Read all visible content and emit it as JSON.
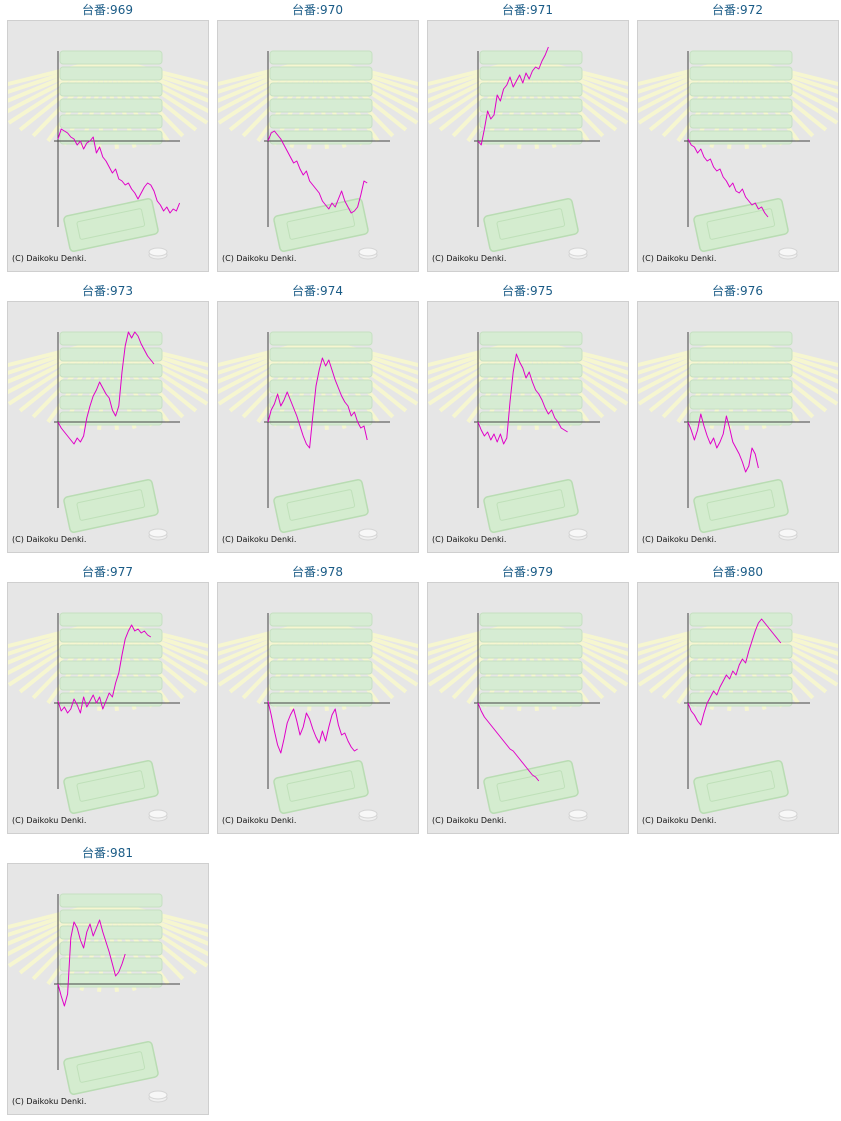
{
  "label_prefix": "台番:",
  "copyright": "(C) Daikoku Denki.",
  "colors": {
    "line": "#e000c8",
    "axis": "#444444",
    "frame_bg": "#e6e6e6",
    "title": "#1a5b86"
  },
  "chart_data": [
    {
      "type": "line",
      "title": "台番:969",
      "values": [
        0.1,
        0.6,
        0.5,
        0.4,
        0.2,
        0.1,
        -0.2,
        0.0,
        -0.4,
        -0.1,
        0.0,
        0.2,
        -0.6,
        -0.3,
        -0.8,
        -1.0,
        -1.3,
        -1.6,
        -1.4,
        -1.9,
        -2.0,
        -2.2,
        -2.1,
        -2.4,
        -2.6,
        -2.9,
        -2.6,
        -2.3,
        -2.1,
        -2.2,
        -2.5,
        -3.0,
        -3.2,
        -3.5,
        -3.3,
        -3.6,
        -3.4,
        -3.5,
        -3.1
      ]
    },
    {
      "type": "line",
      "title": "台番:970",
      "values": [
        0.0,
        0.4,
        0.5,
        0.3,
        0.1,
        -0.2,
        -0.5,
        -0.8,
        -1.1,
        -1.0,
        -1.4,
        -1.7,
        -1.5,
        -2.0,
        -2.2,
        -2.4,
        -2.6,
        -3.0,
        -3.2,
        -3.4,
        -3.1,
        -3.3,
        -2.9,
        -2.5,
        -3.0,
        -3.3,
        -3.6,
        -3.5,
        -3.3,
        -2.7,
        -2.0,
        -2.1
      ]
    },
    {
      "type": "line",
      "title": "台番:971",
      "values": [
        0.0,
        -0.2,
        0.6,
        1.5,
        1.1,
        1.3,
        2.3,
        2.0,
        2.6,
        2.8,
        3.2,
        2.7,
        3.0,
        3.3,
        2.9,
        3.4,
        3.1,
        3.5,
        3.7,
        3.6,
        4.0,
        4.3,
        4.7
      ]
    },
    {
      "type": "line",
      "title": "台番:972",
      "values": [
        0.1,
        -0.2,
        -0.3,
        -0.6,
        -0.4,
        -0.8,
        -1.0,
        -0.9,
        -1.3,
        -1.5,
        -1.4,
        -1.8,
        -2.0,
        -2.3,
        -2.1,
        -2.5,
        -2.6,
        -2.4,
        -2.8,
        -3.0,
        -3.2,
        -3.1,
        -3.4,
        -3.3,
        -3.6,
        -3.8
      ]
    },
    {
      "type": "line",
      "title": "台番:973",
      "values": [
        0.0,
        -0.3,
        -0.5,
        -0.7,
        -0.9,
        -1.1,
        -0.8,
        -1.0,
        -0.7,
        0.2,
        0.8,
        1.3,
        1.6,
        2.0,
        1.7,
        1.4,
        1.2,
        0.6,
        0.3,
        0.8,
        2.5,
        3.8,
        4.5,
        4.2,
        4.5,
        4.3,
        3.9,
        3.6,
        3.3,
        3.1,
        2.9
      ]
    },
    {
      "type": "line",
      "title": "台番:974",
      "values": [
        0.0,
        0.6,
        0.9,
        1.4,
        0.8,
        1.1,
        1.5,
        1.1,
        0.7,
        0.3,
        -0.2,
        -0.7,
        -1.1,
        -1.3,
        0.3,
        1.8,
        2.6,
        3.2,
        2.8,
        3.1,
        2.6,
        2.1,
        1.7,
        1.3,
        1.0,
        0.8,
        0.3,
        0.5,
        0.0,
        -0.3,
        -0.2,
        -0.9
      ]
    },
    {
      "type": "line",
      "title": "台番:975",
      "values": [
        0.0,
        -0.4,
        -0.7,
        -0.5,
        -0.9,
        -0.6,
        -1.0,
        -0.6,
        -1.1,
        -0.8,
        1.0,
        2.5,
        3.4,
        3.0,
        2.7,
        2.2,
        2.5,
        2.0,
        1.6,
        1.4,
        1.1,
        0.7,
        0.4,
        0.6,
        0.2,
        0.0,
        -0.3,
        -0.4,
        -0.5
      ]
    },
    {
      "type": "line",
      "title": "台番:976",
      "values": [
        0.0,
        -0.4,
        -0.9,
        -0.4,
        0.4,
        -0.2,
        -0.7,
        -1.1,
        -0.8,
        -1.3,
        -1.0,
        -0.6,
        0.3,
        -0.3,
        -1.0,
        -1.3,
        -1.6,
        -2.0,
        -2.5,
        -2.2,
        -1.3,
        -1.6,
        -2.3
      ]
    },
    {
      "type": "line",
      "title": "台番:977",
      "values": [
        0.1,
        -0.4,
        -0.2,
        -0.5,
        -0.3,
        0.2,
        -0.1,
        -0.5,
        0.3,
        -0.2,
        0.1,
        0.4,
        0.0,
        0.3,
        -0.3,
        0.1,
        0.5,
        0.3,
        1.0,
        1.5,
        2.4,
        3.2,
        3.6,
        3.9,
        3.6,
        3.7,
        3.5,
        3.6,
        3.4,
        3.3
      ]
    },
    {
      "type": "line",
      "title": "台番:978",
      "values": [
        0.1,
        -0.6,
        -1.4,
        -2.1,
        -2.5,
        -1.8,
        -1.0,
        -0.6,
        -0.3,
        -0.9,
        -1.6,
        -1.2,
        -0.5,
        -0.8,
        -1.3,
        -1.7,
        -2.0,
        -1.4,
        -1.9,
        -1.2,
        -0.6,
        -0.3,
        -1.1,
        -1.6,
        -1.5,
        -1.9,
        -2.2,
        -2.4,
        -2.3
      ]
    },
    {
      "type": "line",
      "title": "台番:979",
      "values": [
        0.0,
        -0.4,
        -0.7,
        -0.9,
        -1.1,
        -1.3,
        -1.5,
        -1.7,
        -1.9,
        -2.1,
        -2.3,
        -2.4,
        -2.6,
        -2.8,
        -3.0,
        -3.2,
        -3.4,
        -3.6,
        -3.7,
        -3.9
      ]
    },
    {
      "type": "line",
      "title": "台番:980",
      "values": [
        0.0,
        -0.4,
        -0.6,
        -0.9,
        -1.1,
        -0.5,
        0.0,
        0.3,
        0.6,
        0.4,
        0.8,
        1.1,
        1.4,
        1.2,
        1.6,
        1.4,
        1.9,
        2.2,
        2.0,
        2.6,
        3.1,
        3.6,
        4.0,
        4.2,
        4.0,
        3.8,
        3.6,
        3.4,
        3.2,
        3.0
      ]
    },
    {
      "type": "line",
      "title": "台番:981",
      "values": [
        0.0,
        -0.6,
        -1.1,
        -0.5,
        2.3,
        3.1,
        2.8,
        2.2,
        1.8,
        2.6,
        3.0,
        2.4,
        2.8,
        3.2,
        2.6,
        2.1,
        1.6,
        1.0,
        0.4,
        0.6,
        1.0,
        1.5
      ]
    }
  ]
}
